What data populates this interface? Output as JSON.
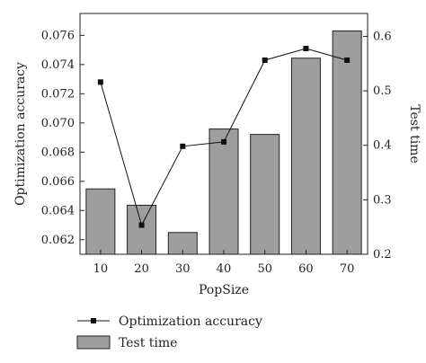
{
  "chart_data": {
    "type": "bar+line",
    "xlabel": "PopSize",
    "categories": [
      "10",
      "20",
      "30",
      "40",
      "50",
      "60",
      "70"
    ],
    "series": [
      {
        "name": "Optimization accuracy",
        "type": "line",
        "axis": "left",
        "values": [
          0.0728,
          0.063,
          0.0684,
          0.0687,
          0.0743,
          0.0751,
          0.0743
        ],
        "color": "#000000"
      },
      {
        "name": "Test time",
        "type": "bar",
        "axis": "right",
        "values": [
          0.32,
          0.29,
          0.24,
          0.43,
          0.42,
          0.56,
          0.61
        ],
        "color": "#9e9e9e"
      }
    ],
    "y_left": {
      "label": "Optimization accuracy",
      "ylim": [
        0.061,
        0.0775
      ],
      "ticks": [
        "0.062",
        "0.064",
        "0.066",
        "0.068",
        "0.070",
        "0.072",
        "0.074",
        "0.076"
      ]
    },
    "y_right": {
      "label": "Test time",
      "ylim": [
        0.2,
        0.642
      ],
      "ticks": [
        "0.2",
        "0.3",
        "0.4",
        "0.5",
        "0.6"
      ]
    },
    "grid": false,
    "legend_position": "bottom"
  }
}
